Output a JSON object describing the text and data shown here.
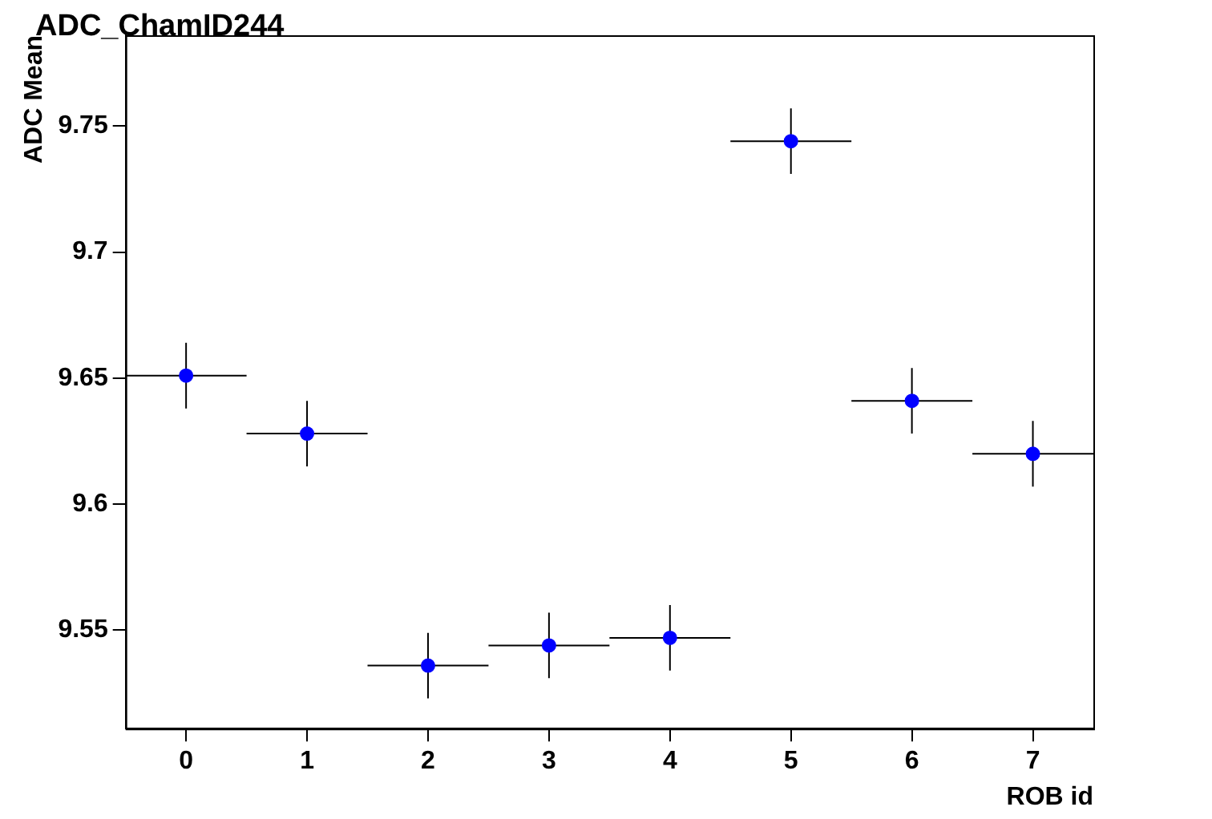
{
  "chart_data": {
    "type": "scatter",
    "title": "ADC_ChamID244",
    "xlabel": "ROB id",
    "ylabel": "ADC Mean",
    "x": [
      0,
      1,
      2,
      3,
      4,
      5,
      6,
      7
    ],
    "values": [
      9.651,
      9.628,
      9.536,
      9.544,
      9.547,
      9.744,
      9.641,
      9.62
    ],
    "errors": [
      0.013,
      0.013,
      0.013,
      0.013,
      0.013,
      0.013,
      0.013,
      0.013
    ],
    "xerrors": [
      0.5,
      0.5,
      0.5,
      0.5,
      0.5,
      0.5,
      0.5,
      0.5
    ],
    "color": "#0000ff",
    "marker": "circle",
    "xlim": [
      -0.5,
      7.5
    ],
    "xticks": [
      0,
      1,
      2,
      3,
      4,
      5,
      6,
      7
    ],
    "ylim": [
      9.511,
      9.786
    ],
    "yticks": [
      9.55,
      9.6,
      9.65,
      9.7,
      9.75
    ],
    "grid": false,
    "legend": false
  }
}
